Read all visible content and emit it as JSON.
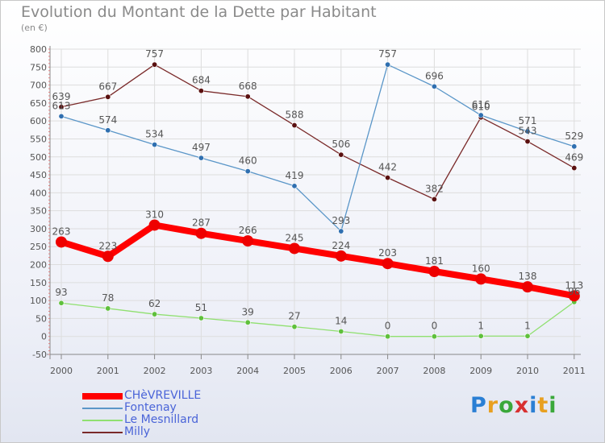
{
  "title": "Evolution du Montant de la Dette par Habitant",
  "subtitle": "(en €)",
  "logo": "Proxiti",
  "chart_data": {
    "type": "line",
    "title": "Evolution du Montant de la Dette par Habitant",
    "ylabel": "(en €)",
    "xlabel": "",
    "categories": [
      "2000",
      "2001",
      "2002",
      "2003",
      "2004",
      "2005",
      "2006",
      "2007",
      "2008",
      "2009",
      "2010",
      "2011"
    ],
    "ylim": [
      -50,
      800
    ],
    "yticks": [
      -50,
      0,
      50,
      100,
      150,
      200,
      250,
      300,
      350,
      400,
      450,
      500,
      550,
      600,
      650,
      700,
      750,
      800
    ],
    "grid": true,
    "legend_position": "bottom-left",
    "series": [
      {
        "name": "CHèVREVILLE",
        "color": "#ff0000",
        "values": [
          263,
          223,
          310,
          287,
          266,
          245,
          224,
          203,
          181,
          160,
          138,
          113
        ]
      },
      {
        "name": "Fontenay",
        "color": "#5a96c8",
        "values": [
          613,
          574,
          534,
          497,
          460,
          419,
          293,
          757,
          696,
          616,
          571,
          529
        ]
      },
      {
        "name": "Le Mesnillard",
        "color": "#90e070",
        "values": [
          93,
          78,
          62,
          51,
          39,
          27,
          14,
          0,
          0,
          1,
          1,
          96
        ]
      },
      {
        "name": "Milly",
        "color": "#7a2a2a",
        "values": [
          639,
          667,
          757,
          684,
          668,
          588,
          506,
          442,
          382,
          610,
          543,
          469
        ]
      }
    ]
  }
}
